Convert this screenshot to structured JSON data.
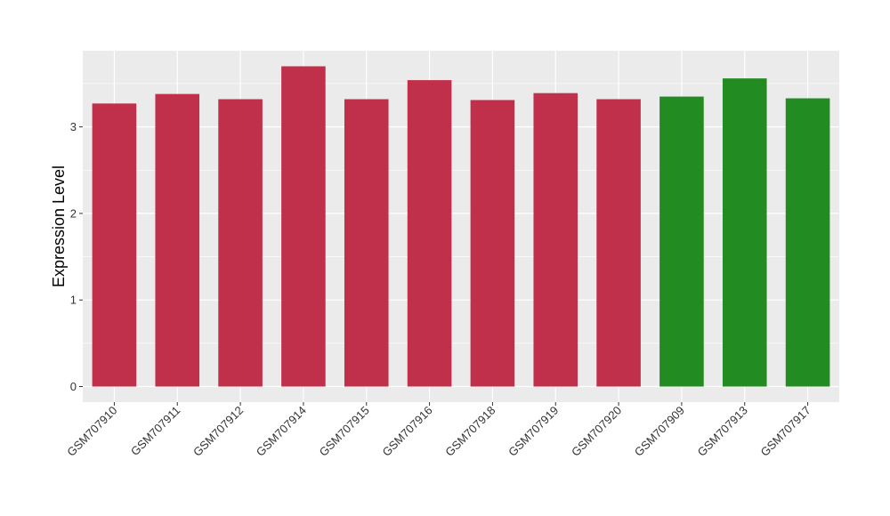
{
  "chart_data": {
    "type": "bar",
    "ylabel": "Expression Level",
    "xlabel": "",
    "ylim": [
      -0.18,
      3.88
    ],
    "yticks": [
      0,
      1,
      2,
      3
    ],
    "grid": true,
    "categories": [
      "GSM707910",
      "GSM707911",
      "GSM707912",
      "GSM707914",
      "GSM707915",
      "GSM707916",
      "GSM707918",
      "GSM707919",
      "GSM707920",
      "GSM707909",
      "GSM707913",
      "GSM707917"
    ],
    "values": [
      3.27,
      3.38,
      3.32,
      3.7,
      3.32,
      3.54,
      3.31,
      3.39,
      3.32,
      3.35,
      3.56,
      3.33
    ],
    "bar_colors": [
      "#c0304a",
      "#c0304a",
      "#c0304a",
      "#c0304a",
      "#c0304a",
      "#c0304a",
      "#c0304a",
      "#c0304a",
      "#c0304a",
      "#228b22",
      "#228b22",
      "#228b22"
    ],
    "panel_color": "#ebebeb",
    "grid_color": "#ffffff"
  }
}
